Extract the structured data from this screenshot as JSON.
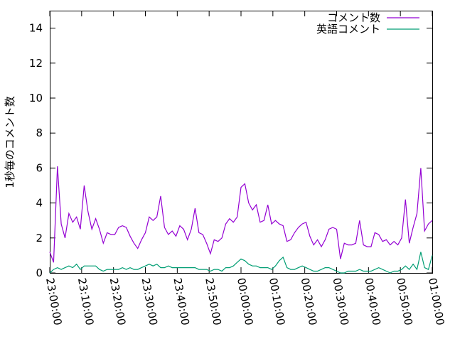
{
  "chart_data": {
    "type": "line",
    "title": "",
    "xlabel": "",
    "ylabel": "1秒毎のコメント数",
    "ylim": [
      0,
      15
    ],
    "xlim": [
      "23:00:00",
      "01:00:00"
    ],
    "yticks": [
      "0",
      "2",
      "4",
      "6",
      "8",
      "10",
      "12",
      "14"
    ],
    "xticks": [
      "23:00:00",
      "23:10:00",
      "23:20:00",
      "23:30:00",
      "23:40:00",
      "23:50:00",
      "00:00:00",
      "00:10:00",
      "00:20:00",
      "00:30:00",
      "00:40:00",
      "00:50:00",
      "01:00:00"
    ],
    "grid": false,
    "legend": "top-right",
    "x": [
      "23:00:00",
      "23:01:12",
      "23:02:24",
      "23:03:36",
      "23:04:48",
      "23:06:00",
      "23:07:12",
      "23:08:24",
      "23:09:36",
      "23:10:48",
      "23:12:00",
      "23:13:12",
      "23:14:24",
      "23:15:36",
      "23:16:48",
      "23:18:00",
      "23:19:12",
      "23:20:24",
      "23:21:36",
      "23:22:48",
      "23:24:00",
      "23:25:12",
      "23:26:24",
      "23:27:36",
      "23:28:48",
      "23:30:00",
      "23:31:12",
      "23:32:24",
      "23:33:36",
      "23:34:48",
      "23:36:00",
      "23:37:12",
      "23:38:24",
      "23:39:36",
      "23:40:48",
      "23:42:00",
      "23:43:12",
      "23:44:24",
      "23:45:36",
      "23:46:48",
      "23:48:00",
      "23:49:12",
      "23:50:24",
      "23:51:36",
      "23:52:48",
      "23:54:00",
      "23:55:12",
      "23:56:24",
      "23:57:36",
      "23:58:48",
      "00:00:00",
      "00:01:12",
      "00:02:24",
      "00:03:36",
      "00:04:48",
      "00:06:00",
      "00:07:12",
      "00:08:24",
      "00:09:36",
      "00:10:48",
      "00:12:00",
      "00:13:12",
      "00:14:24",
      "00:15:36",
      "00:16:48",
      "00:18:00",
      "00:19:12",
      "00:20:24",
      "00:21:36",
      "00:22:48",
      "00:24:00",
      "00:25:12",
      "00:26:24",
      "00:27:36",
      "00:28:48",
      "00:30:00",
      "00:31:12",
      "00:32:24",
      "00:33:36",
      "00:34:48",
      "00:36:00",
      "00:37:12",
      "00:38:24",
      "00:39:36",
      "00:40:48",
      "00:42:00",
      "00:43:12",
      "00:44:24",
      "00:45:36",
      "00:46:48",
      "00:48:00",
      "00:49:12",
      "00:50:24",
      "00:51:36",
      "00:52:48",
      "00:54:00",
      "00:55:12",
      "00:56:24",
      "00:57:36",
      "00:58:48",
      "01:00:00"
    ],
    "series": [
      {
        "name": "コメント数",
        "color": "#9400d3",
        "values": [
          1.2,
          0.6,
          6.1,
          2.8,
          2.0,
          3.4,
          2.9,
          3.2,
          2.5,
          5.0,
          3.5,
          2.5,
          3.1,
          2.5,
          1.7,
          2.3,
          2.2,
          2.2,
          2.6,
          2.7,
          2.6,
          2.1,
          1.7,
          1.4,
          1.9,
          2.3,
          3.2,
          3.0,
          3.2,
          4.4,
          2.6,
          2.2,
          2.4,
          2.1,
          2.7,
          2.5,
          1.9,
          2.5,
          3.7,
          2.3,
          2.2,
          1.7,
          1.1,
          1.9,
          1.8,
          2.0,
          2.8,
          3.1,
          2.9,
          3.2,
          4.9,
          5.1,
          4.0,
          3.6,
          3.9,
          2.9,
          3.0,
          3.9,
          2.8,
          3.0,
          2.8,
          2.7,
          1.8,
          1.9,
          2.3,
          2.6,
          2.8,
          2.9,
          2.1,
          1.6,
          1.9,
          1.5,
          1.9,
          2.5,
          2.6,
          2.5,
          0.8,
          1.7,
          1.6,
          1.6,
          1.7,
          3.0,
          1.6,
          1.5,
          1.5,
          2.3,
          2.2,
          1.8,
          1.9,
          1.6,
          1.8,
          1.6,
          2.0,
          4.2,
          1.7,
          2.6,
          3.4,
          6.0,
          2.4,
          2.8,
          3.0
        ]
      },
      {
        "name": "英語コメント",
        "color": "#009e73",
        "values": [
          0.0,
          0.2,
          0.3,
          0.2,
          0.3,
          0.4,
          0.3,
          0.5,
          0.2,
          0.4,
          0.4,
          0.4,
          0.4,
          0.2,
          0.1,
          0.2,
          0.2,
          0.2,
          0.2,
          0.3,
          0.2,
          0.3,
          0.2,
          0.2,
          0.3,
          0.4,
          0.5,
          0.4,
          0.5,
          0.3,
          0.3,
          0.4,
          0.3,
          0.3,
          0.3,
          0.3,
          0.3,
          0.3,
          0.3,
          0.2,
          0.2,
          0.2,
          0.1,
          0.2,
          0.2,
          0.1,
          0.3,
          0.3,
          0.4,
          0.6,
          0.8,
          0.7,
          0.5,
          0.4,
          0.4,
          0.3,
          0.3,
          0.3,
          0.2,
          0.4,
          0.7,
          0.9,
          0.3,
          0.2,
          0.2,
          0.3,
          0.4,
          0.3,
          0.2,
          0.1,
          0.1,
          0.2,
          0.3,
          0.3,
          0.2,
          0.1,
          0.0,
          0.0,
          0.1,
          0.1,
          0.1,
          0.2,
          0.1,
          0.1,
          0.1,
          0.2,
          0.3,
          0.2,
          0.1,
          0.0,
          0.1,
          0.1,
          0.2,
          0.4,
          0.2,
          0.5,
          0.2,
          1.2,
          0.3,
          0.2,
          1.0
        ]
      }
    ]
  }
}
